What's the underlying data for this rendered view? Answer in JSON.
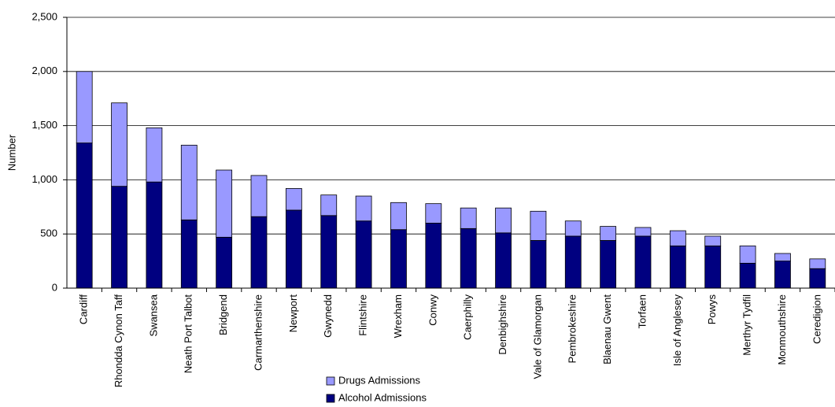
{
  "chart_data": {
    "type": "stacked-bar",
    "y_label": "Number",
    "categories": [
      "Cardiff",
      "Rhondda Cynon Taff",
      "Swansea",
      "Neath Port Talbot",
      "Bridgend",
      "Carmarthenshire",
      "Newport",
      "Gwynedd",
      "Flintshire",
      "Wrexham",
      "Conwy",
      "Caerphilly",
      "Denbighshire",
      "Vale of Glamorgan",
      "Pembrokeshire",
      "Blaenau Gwent",
      "Torfaen",
      "Isle of Anglesey",
      "Powys",
      "Merthyr Tydfil",
      "Monmouthshire",
      "Ceredigion"
    ],
    "series": [
      {
        "name": "Alcohol Admissions",
        "color": "#000080",
        "values": [
          1340,
          940,
          980,
          630,
          470,
          660,
          720,
          670,
          620,
          540,
          600,
          550,
          510,
          440,
          480,
          440,
          480,
          390,
          390,
          230,
          250,
          180
        ]
      },
      {
        "name": "Drugs Admissions",
        "color": "#9999ff",
        "values": [
          660,
          770,
          500,
          690,
          620,
          380,
          200,
          190,
          230,
          250,
          180,
          190,
          230,
          270,
          140,
          130,
          80,
          140,
          90,
          160,
          70,
          90
        ]
      }
    ],
    "ylim": [
      0,
      2500
    ],
    "yticks": [
      0,
      500,
      {
        "value": 1000,
        "label": "1,000"
      },
      {
        "value": 1500,
        "label": "1,500"
      },
      {
        "value": 2000,
        "label": "2,000"
      },
      {
        "value": 2500,
        "label": "2,500"
      }
    ],
    "grid": true,
    "legend": "bottom"
  }
}
